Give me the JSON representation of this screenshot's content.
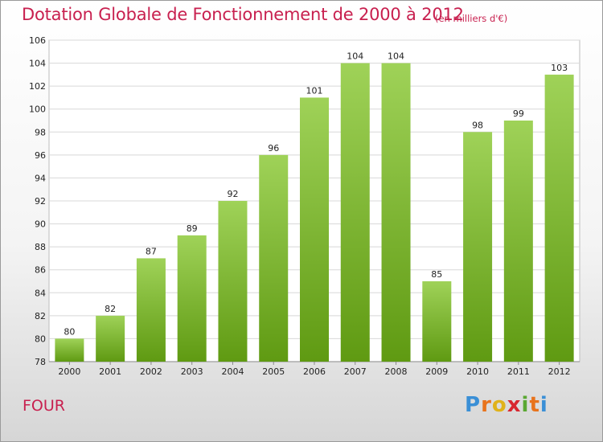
{
  "title": "Dotation Globale de Fonctionnement de 2000 à 2012",
  "subtitle": "(en milliers d'€)",
  "commune": "FOUR",
  "logo": {
    "letters": [
      "P",
      "r",
      "o",
      "x",
      "i",
      "t",
      "i"
    ],
    "colors": [
      "#3a8fd6",
      "#e8731c",
      "#e0b21a",
      "#d8262e",
      "#5aa832",
      "#e8731c",
      "#3a8fd6"
    ]
  },
  "colors": {
    "bar_top": "#9fd258",
    "bar_bottom": "#5f9a12",
    "title": "#c8204f"
  },
  "chart_data": {
    "type": "bar",
    "categories": [
      "2000",
      "2001",
      "2002",
      "2003",
      "2004",
      "2005",
      "2006",
      "2007",
      "2008",
      "2009",
      "2010",
      "2011",
      "2012"
    ],
    "values": [
      80,
      82,
      87,
      89,
      92,
      96,
      101,
      104,
      104,
      85,
      98,
      99,
      103
    ],
    "ylim": [
      78,
      106
    ],
    "yticks": [
      78,
      80,
      82,
      84,
      86,
      88,
      90,
      92,
      94,
      96,
      98,
      100,
      102,
      104,
      106
    ],
    "grid": true,
    "xlabel": "",
    "ylabel": ""
  }
}
